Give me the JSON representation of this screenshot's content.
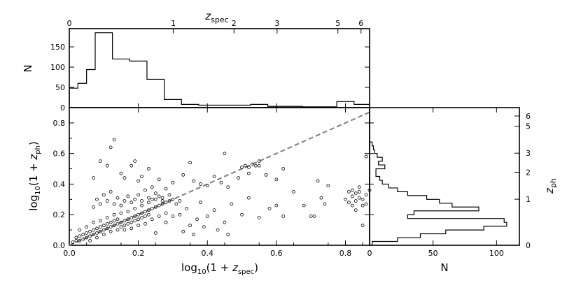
{
  "chart_data": [
    {
      "panel": "top-histogram",
      "type": "bar",
      "style": "step",
      "top_axis_label": "z_spec",
      "ylabel": "N",
      "xlim": [
        0,
        0.87
      ],
      "ylim": [
        0,
        195
      ],
      "top_ticks": [
        {
          "label": "0",
          "z": 0
        },
        {
          "label": "1",
          "z": 1
        },
        {
          "label": "2",
          "z": 2
        },
        {
          "label": "3",
          "z": 3
        },
        {
          "label": "5",
          "z": 5
        },
        {
          "label": "6",
          "z": 6
        }
      ],
      "y_ticks": [
        0,
        50,
        100,
        150
      ],
      "bin_edges": [
        0,
        0.025,
        0.05,
        0.075,
        0.1,
        0.125,
        0.15,
        0.175,
        0.2,
        0.225,
        0.25,
        0.275,
        0.3,
        0.325,
        0.35,
        0.375,
        0.4,
        0.425,
        0.45,
        0.475,
        0.5,
        0.525,
        0.55,
        0.575,
        0.6,
        0.625,
        0.65,
        0.675,
        0.7,
        0.725,
        0.75,
        0.775,
        0.8,
        0.825,
        0.85,
        0.87
      ],
      "values": [
        48,
        60,
        94,
        185,
        185,
        120,
        120,
        115,
        115,
        70,
        70,
        20,
        20,
        8,
        8,
        6,
        6,
        6,
        6,
        6,
        6,
        8,
        8,
        3,
        3,
        3,
        3,
        2,
        2,
        2,
        2,
        15,
        15,
        8,
        8
      ]
    },
    {
      "panel": "main-scatter",
      "type": "scatter",
      "xlabel": "log10(1 + z_spec)",
      "ylabel": "log10(1 + z_ph)",
      "xlim": [
        0,
        0.87
      ],
      "ylim": [
        0,
        0.9
      ],
      "x_ticks": [
        0.0,
        0.2,
        0.4,
        0.6,
        0.8
      ],
      "y_ticks": [
        0.0,
        0.2,
        0.4,
        0.6,
        0.8
      ],
      "reference_line": {
        "x": [
          0,
          0.87
        ],
        "y": [
          0,
          0.87
        ],
        "style": "dashed",
        "color": "#7f7f7f"
      },
      "points": [
        [
          0.01,
          0.02
        ],
        [
          0.02,
          0.03
        ],
        [
          0.02,
          0.05
        ],
        [
          0.03,
          0.03
        ],
        [
          0.03,
          0.06
        ],
        [
          0.04,
          0.04
        ],
        [
          0.04,
          0.07
        ],
        [
          0.05,
          0.05
        ],
        [
          0.05,
          0.08
        ],
        [
          0.06,
          0.06
        ],
        [
          0.06,
          0.09
        ],
        [
          0.07,
          0.07
        ],
        [
          0.07,
          0.1
        ],
        [
          0.08,
          0.08
        ],
        [
          0.08,
          0.11
        ],
        [
          0.09,
          0.09
        ],
        [
          0.09,
          0.12
        ],
        [
          0.1,
          0.1
        ],
        [
          0.1,
          0.13
        ],
        [
          0.11,
          0.11
        ],
        [
          0.11,
          0.14
        ],
        [
          0.12,
          0.12
        ],
        [
          0.12,
          0.15
        ],
        [
          0.13,
          0.13
        ],
        [
          0.13,
          0.16
        ],
        [
          0.14,
          0.14
        ],
        [
          0.14,
          0.17
        ],
        [
          0.15,
          0.15
        ],
        [
          0.15,
          0.12
        ],
        [
          0.16,
          0.16
        ],
        [
          0.16,
          0.13
        ],
        [
          0.17,
          0.17
        ],
        [
          0.17,
          0.14
        ],
        [
          0.18,
          0.18
        ],
        [
          0.18,
          0.15
        ],
        [
          0.19,
          0.19
        ],
        [
          0.19,
          0.16
        ],
        [
          0.2,
          0.2
        ],
        [
          0.2,
          0.17
        ],
        [
          0.21,
          0.21
        ],
        [
          0.21,
          0.18
        ],
        [
          0.22,
          0.22
        ],
        [
          0.22,
          0.19
        ],
        [
          0.23,
          0.23
        ],
        [
          0.23,
          0.2
        ],
        [
          0.24,
          0.24
        ],
        [
          0.25,
          0.25
        ],
        [
          0.26,
          0.26
        ],
        [
          0.27,
          0.27
        ],
        [
          0.28,
          0.28
        ],
        [
          0.29,
          0.29
        ],
        [
          0.3,
          0.3
        ],
        [
          0.03,
          0.1
        ],
        [
          0.05,
          0.12
        ],
        [
          0.06,
          0.03
        ],
        [
          0.07,
          0.15
        ],
        [
          0.08,
          0.05
        ],
        [
          0.09,
          0.16
        ],
        [
          0.1,
          0.07
        ],
        [
          0.11,
          0.18
        ],
        [
          0.12,
          0.09
        ],
        [
          0.13,
          0.2
        ],
        [
          0.14,
          0.1
        ],
        [
          0.15,
          0.21
        ],
        [
          0.16,
          0.1
        ],
        [
          0.17,
          0.22
        ],
        [
          0.18,
          0.11
        ],
        [
          0.19,
          0.24
        ],
        [
          0.2,
          0.13
        ],
        [
          0.21,
          0.26
        ],
        [
          0.22,
          0.14
        ],
        [
          0.23,
          0.28
        ],
        [
          0.24,
          0.17
        ],
        [
          0.25,
          0.3
        ],
        [
          0.26,
          0.19
        ],
        [
          0.27,
          0.31
        ],
        [
          0.28,
          0.21
        ],
        [
          0.29,
          0.33
        ],
        [
          0.31,
          0.27
        ],
        [
          0.32,
          0.29
        ],
        [
          0.07,
          0.25
        ],
        [
          0.08,
          0.3
        ],
        [
          0.09,
          0.27
        ],
        [
          0.1,
          0.33
        ],
        [
          0.11,
          0.29
        ],
        [
          0.12,
          0.35
        ],
        [
          0.13,
          0.27
        ],
        [
          0.14,
          0.31
        ],
        [
          0.15,
          0.26
        ],
        [
          0.16,
          0.29
        ],
        [
          0.17,
          0.32
        ],
        [
          0.18,
          0.28
        ],
        [
          0.19,
          0.3
        ],
        [
          0.2,
          0.33
        ],
        [
          0.21,
          0.29
        ],
        [
          0.22,
          0.36
        ],
        [
          0.23,
          0.31
        ],
        [
          0.24,
          0.3
        ],
        [
          0.25,
          0.34
        ],
        [
          0.26,
          0.32
        ],
        [
          0.27,
          0.29
        ],
        [
          0.07,
          0.44
        ],
        [
          0.09,
          0.55
        ],
        [
          0.11,
          0.52
        ],
        [
          0.12,
          0.64
        ],
        [
          0.13,
          0.69
        ],
        [
          0.15,
          0.47
        ],
        [
          0.16,
          0.44
        ],
        [
          0.18,
          0.52
        ],
        [
          0.19,
          0.55
        ],
        [
          0.2,
          0.42
        ],
        [
          0.21,
          0.45
        ],
        [
          0.23,
          0.5
        ],
        [
          0.24,
          0.38
        ],
        [
          0.26,
          0.43
        ],
        [
          0.28,
          0.37
        ],
        [
          0.3,
          0.41
        ],
        [
          0.33,
          0.46
        ],
        [
          0.36,
          0.42
        ],
        [
          0.38,
          0.4
        ],
        [
          0.4,
          0.39
        ],
        [
          0.42,
          0.45
        ],
        [
          0.44,
          0.41
        ],
        [
          0.46,
          0.38
        ],
        [
          0.49,
          0.44
        ],
        [
          0.52,
          0.47
        ],
        [
          0.55,
          0.55
        ],
        [
          0.57,
          0.46
        ],
        [
          0.6,
          0.43
        ],
        [
          0.62,
          0.5
        ],
        [
          0.45,
          0.6
        ],
        [
          0.35,
          0.54
        ],
        [
          0.28,
          0.15
        ],
        [
          0.3,
          0.19
        ],
        [
          0.32,
          0.2
        ],
        [
          0.34,
          0.24
        ],
        [
          0.35,
          0.13
        ],
        [
          0.37,
          0.17
        ],
        [
          0.38,
          0.28
        ],
        [
          0.4,
          0.19
        ],
        [
          0.42,
          0.23
        ],
        [
          0.45,
          0.15
        ],
        [
          0.47,
          0.27
        ],
        [
          0.5,
          0.2
        ],
        [
          0.52,
          0.31
        ],
        [
          0.55,
          0.18
        ],
        [
          0.58,
          0.24
        ],
        [
          0.6,
          0.26
        ],
        [
          0.62,
          0.19
        ],
        [
          0.65,
          0.35
        ],
        [
          0.68,
          0.26
        ],
        [
          0.71,
          0.19
        ],
        [
          0.33,
          0.09
        ],
        [
          0.36,
          0.07
        ],
        [
          0.39,
          0.12
        ],
        [
          0.43,
          0.1
        ],
        [
          0.46,
          0.07
        ],
        [
          0.25,
          0.08
        ],
        [
          0.5,
          0.51
        ],
        [
          0.51,
          0.52
        ],
        [
          0.52,
          0.51
        ],
        [
          0.53,
          0.53
        ],
        [
          0.54,
          0.52
        ],
        [
          0.55,
          0.52
        ],
        [
          0.81,
          0.35
        ],
        [
          0.82,
          0.36
        ],
        [
          0.83,
          0.34
        ],
        [
          0.84,
          0.35
        ],
        [
          0.82,
          0.32
        ],
        [
          0.84,
          0.31
        ],
        [
          0.83,
          0.29
        ],
        [
          0.85,
          0.3
        ],
        [
          0.81,
          0.28
        ],
        [
          0.86,
          0.33
        ],
        [
          0.82,
          0.26
        ],
        [
          0.85,
          0.26
        ],
        [
          0.83,
          0.23
        ],
        [
          0.86,
          0.27
        ],
        [
          0.8,
          0.3
        ],
        [
          0.84,
          0.38
        ],
        [
          0.87,
          0.36
        ],
        [
          0.72,
          0.42
        ],
        [
          0.73,
          0.31
        ],
        [
          0.74,
          0.27
        ],
        [
          0.75,
          0.39
        ],
        [
          0.86,
          0.58
        ],
        [
          0.85,
          0.13
        ],
        [
          0.7,
          0.19
        ]
      ]
    },
    {
      "panel": "right-histogram",
      "type": "bar",
      "style": "step",
      "orientation": "horizontal",
      "xlabel": "N",
      "right_axis_label": "z_ph",
      "xlim": [
        0,
        118
      ],
      "ylim": [
        0,
        0.9
      ],
      "x_ticks": [
        0,
        50,
        100
      ],
      "right_ticks": [
        {
          "label": "0",
          "z": 0
        },
        {
          "label": "1",
          "z": 1
        },
        {
          "label": "2",
          "z": 2
        },
        {
          "label": "3",
          "z": 3
        },
        {
          "label": "5",
          "z": 5
        },
        {
          "label": "6",
          "z": 6
        }
      ],
      "bin_edges": [
        0,
        0.025,
        0.05,
        0.075,
        0.1,
        0.125,
        0.15,
        0.175,
        0.2,
        0.225,
        0.25,
        0.275,
        0.3,
        0.325,
        0.35,
        0.375,
        0.4,
        0.425,
        0.45,
        0.475,
        0.5,
        0.525,
        0.55,
        0.575,
        0.6,
        0.625,
        0.65,
        0.675
      ],
      "values": [
        2,
        22,
        40,
        60,
        90,
        108,
        106,
        30,
        35,
        86,
        65,
        55,
        45,
        30,
        22,
        15,
        10,
        8,
        5,
        5,
        12,
        7,
        10,
        6,
        4,
        3,
        2
      ]
    }
  ]
}
